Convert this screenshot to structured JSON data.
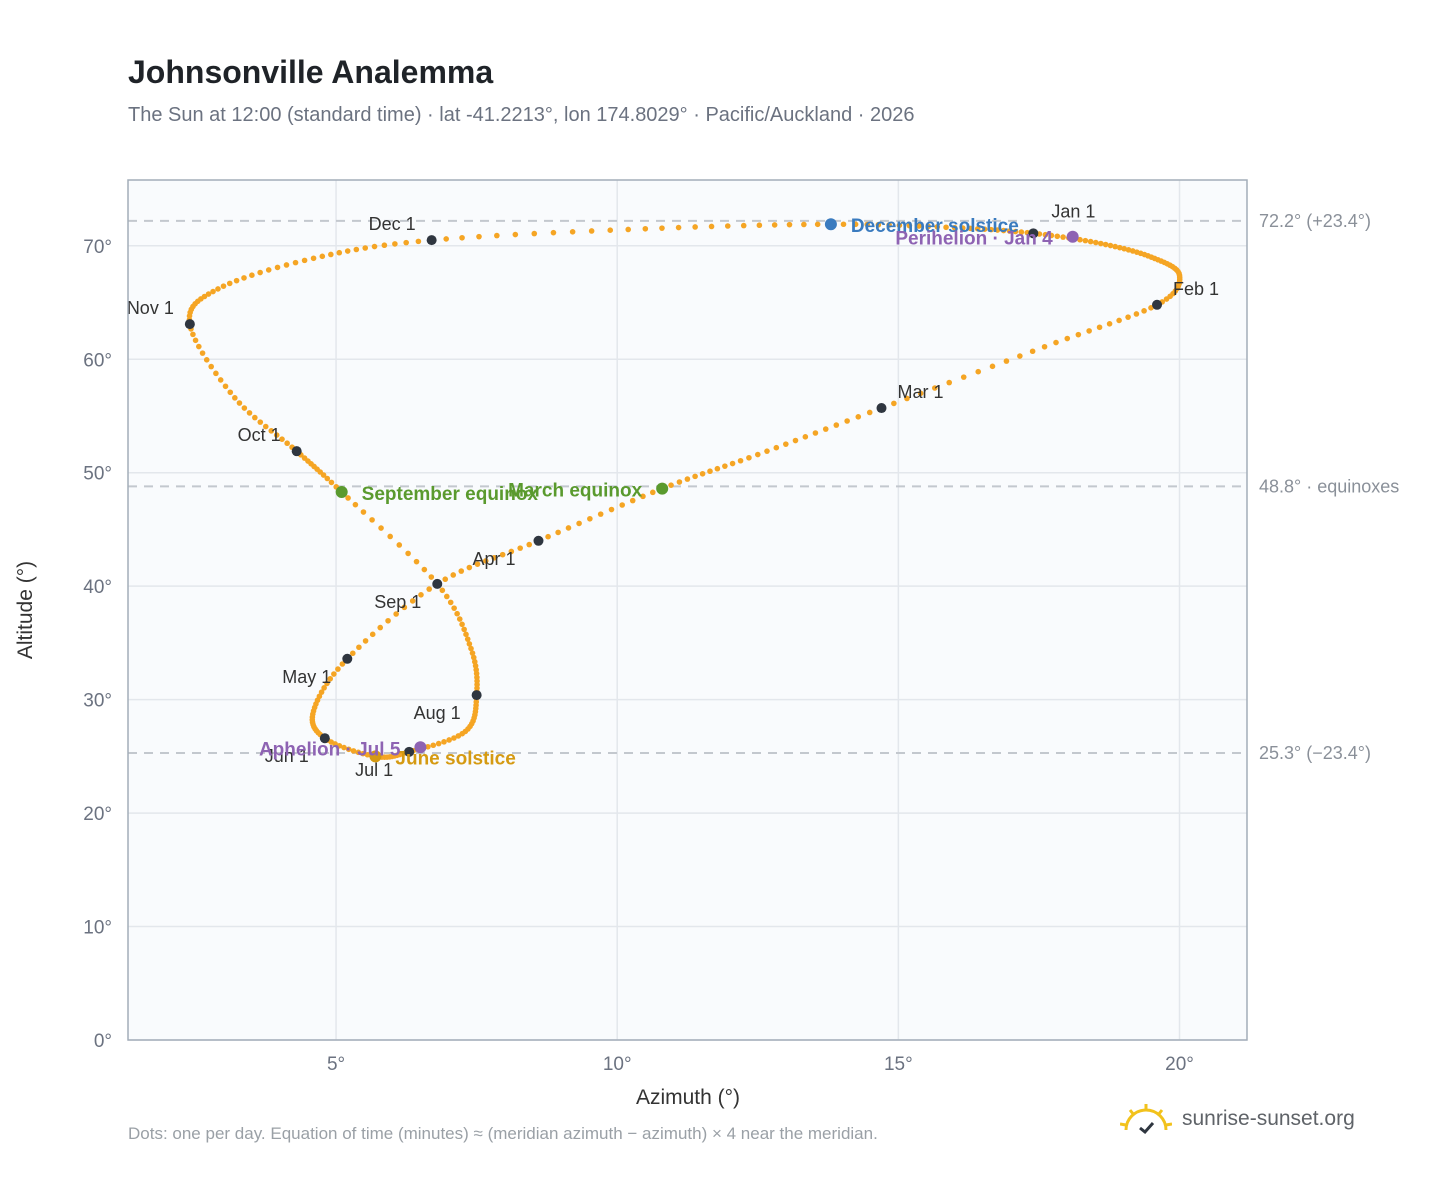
{
  "colors": {
    "curve": "#f5a524",
    "month_marker": "#2f3640",
    "equinox": "#5a9a2e",
    "december_solstice": "#3a7bbf",
    "june_solstice": "#d59a12",
    "apsis": "#8e63b3",
    "grid": "#e3e7ec",
    "plot_bg": "#f9fbfd",
    "frame": "#a3adb9",
    "ref_line": "#c3c8ce"
  },
  "chart_data": {
    "type": "scatter",
    "title": "Johnsonville Analemma",
    "subtitle": "The Sun at 12:00 (standard time) · lat -41.2213°, lon 174.8029° · Pacific/Auckland · 2026",
    "xlabel": "Azimuth (°)",
    "ylabel": "Altitude (°)",
    "xlim": [
      1.3,
      21.2
    ],
    "ylim": [
      0,
      75.8
    ],
    "x_ticks": [
      5,
      10,
      15,
      20
    ],
    "x_tick_labels": [
      "5°",
      "10°",
      "15°",
      "20°"
    ],
    "y_ticks": [
      0,
      10,
      20,
      30,
      40,
      50,
      60,
      70
    ],
    "y_tick_labels": [
      "0°",
      "10°",
      "20°",
      "30°",
      "40°",
      "50°",
      "60°",
      "70°"
    ],
    "grid": true,
    "reference_lines": [
      {
        "y": 72.2,
        "label": "72.2° (+23.4°)"
      },
      {
        "y": 48.8,
        "label": "48.8° · equinoxes"
      },
      {
        "y": 25.3,
        "label": "25.3° (−23.4°)"
      }
    ],
    "month_markers": [
      {
        "label": "Jan 1",
        "x": 17.4,
        "y": 71.1
      },
      {
        "label": "Feb 1",
        "x": 19.6,
        "y": 64.8
      },
      {
        "label": "Mar 1",
        "x": 14.7,
        "y": 55.7
      },
      {
        "label": "Apr 1",
        "x": 8.6,
        "y": 44.0
      },
      {
        "label": "May 1",
        "x": 5.2,
        "y": 33.6
      },
      {
        "label": "Jun 1",
        "x": 4.8,
        "y": 26.6
      },
      {
        "label": "Jul 1",
        "x": 6.3,
        "y": 25.4
      },
      {
        "label": "Aug 1",
        "x": 7.5,
        "y": 30.4
      },
      {
        "label": "Sep 1",
        "x": 6.8,
        "y": 40.2
      },
      {
        "label": "Oct 1",
        "x": 4.3,
        "y": 51.9
      },
      {
        "label": "Nov 1",
        "x": 2.4,
        "y": 63.1
      },
      {
        "label": "Dec 1",
        "x": 6.7,
        "y": 70.5
      }
    ],
    "events": [
      {
        "label": "December solstice",
        "x": 13.8,
        "y": 71.9,
        "kind": "december_solstice"
      },
      {
        "label": "Perihelion · Jan 4",
        "x": 18.1,
        "y": 70.8,
        "kind": "apsis"
      },
      {
        "label": "March equinox",
        "x": 10.8,
        "y": 48.6,
        "kind": "equinox"
      },
      {
        "label": "September equinox",
        "x": 5.1,
        "y": 48.3,
        "kind": "equinox"
      },
      {
        "label": "June solstice",
        "x": 5.7,
        "y": 25.0,
        "kind": "june_solstice"
      },
      {
        "label": "Aphelion · Jul 5",
        "x": 6.5,
        "y": 25.8,
        "kind": "apsis"
      }
    ],
    "series": [
      {
        "points": [
          [
            13.8,
            71.9
          ],
          [
            16.0,
            71.6
          ],
          [
            17.4,
            71.1
          ],
          [
            18.6,
            70.2
          ],
          [
            19.5,
            69.0
          ],
          [
            20.0,
            67.4
          ],
          [
            19.6,
            64.8
          ],
          [
            17.6,
            61.1
          ],
          [
            14.7,
            55.7
          ],
          [
            12.5,
            51.6
          ],
          [
            10.8,
            48.6
          ],
          [
            8.6,
            44.0
          ],
          [
            6.8,
            40.2
          ],
          [
            5.2,
            33.6
          ],
          [
            4.6,
            29.0
          ],
          [
            4.8,
            26.6
          ],
          [
            5.7,
            25.0
          ],
          [
            6.3,
            25.4
          ],
          [
            7.3,
            27.2
          ],
          [
            7.5,
            30.4
          ],
          [
            7.4,
            34.5
          ],
          [
            6.8,
            40.2
          ],
          [
            5.1,
            48.3
          ],
          [
            4.3,
            51.9
          ],
          [
            3.2,
            56.6
          ],
          [
            2.4,
            63.1
          ],
          [
            2.9,
            66.2
          ],
          [
            4.6,
            68.9
          ],
          [
            6.7,
            70.5
          ],
          [
            10.5,
            71.5
          ],
          [
            13.8,
            71.9
          ]
        ]
      }
    ]
  },
  "footnote": "Dots: one per day. Equation of time (minutes) ≈ (meridian azimuth − azimuth) × 4 near the meridian.",
  "brand": {
    "name": "sunrise-sunset.org",
    "icon": "sun-check-icon"
  }
}
